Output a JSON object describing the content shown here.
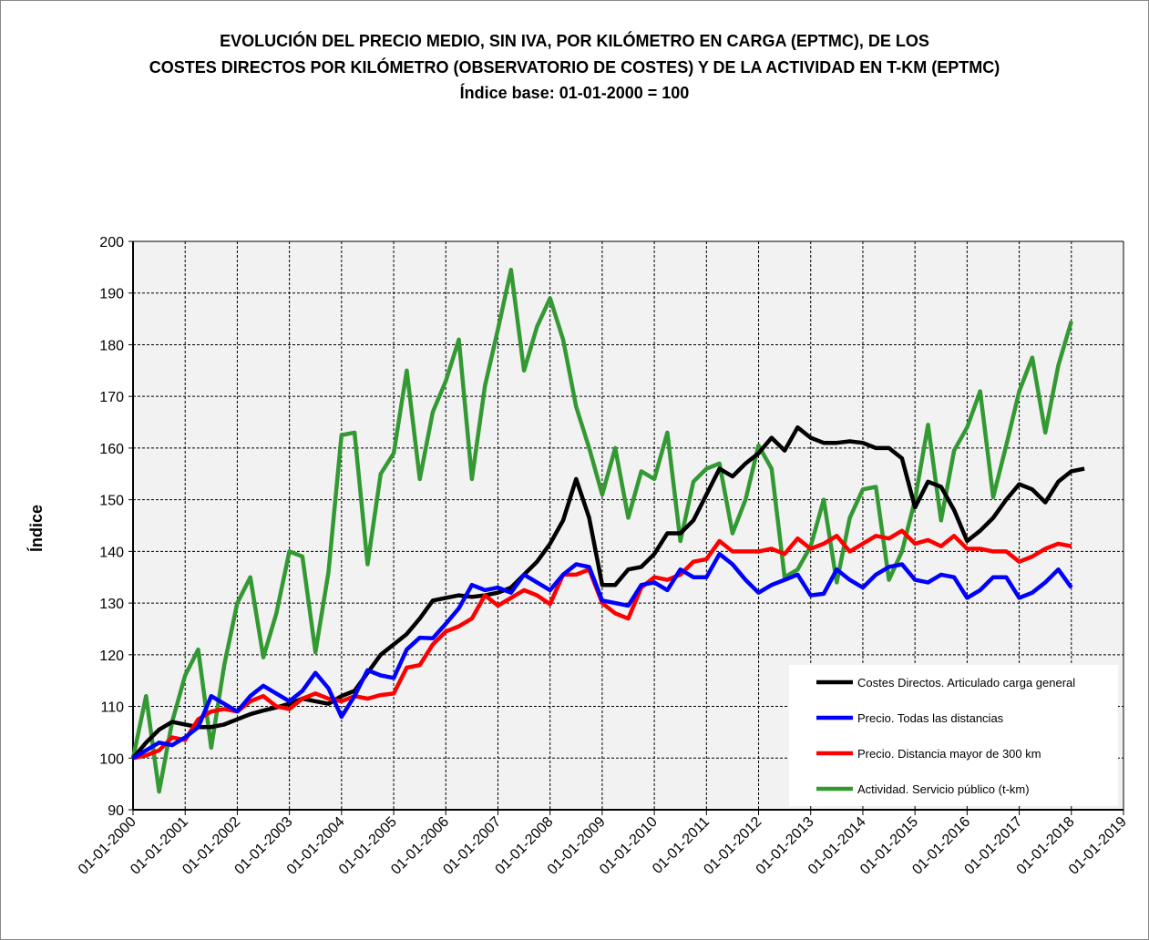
{
  "chart_data": {
    "type": "line",
    "title": [
      "EVOLUCIÓN DEL PRECIO MEDIO, SIN IVA, POR KILÓMETRO EN CARGA (EPTMC), DE LOS",
      "COSTES DIRECTOS POR KILÓMETRO (OBSERVATORIO DE COSTES) Y DE LA ACTIVIDAD EN T-KM (EPTMC)",
      "Índice base: 01-01-2000 = 100"
    ],
    "xlabel": "",
    "ylabel": "Índice",
    "x_start_year": 2000,
    "x_step_years": 0.25,
    "xlim": [
      2000,
      2019
    ],
    "ylim": [
      90,
      200
    ],
    "yticks": [
      "90",
      "100",
      "110",
      "120",
      "130",
      "140",
      "150",
      "160",
      "170",
      "180",
      "190",
      "200"
    ],
    "xticks": [
      "01-01-2000",
      "01-01-2001",
      "01-01-2002",
      "01-01-2003",
      "01-01-2004",
      "01-01-2005",
      "01-01-2006",
      "01-01-2007",
      "01-01-2008",
      "01-01-2009",
      "01-01-2010",
      "01-01-2011",
      "01-01-2012",
      "01-01-2013",
      "01-01-2014",
      "01-01-2015",
      "01-01-2016",
      "01-01-2017",
      "01-01-2018",
      "01-01-2019"
    ],
    "grid": true,
    "legend_position": "bottom-right",
    "series": [
      {
        "name": "Costes Directos. Articulado carga general",
        "color": "#000000",
        "values": [
          100,
          103,
          105.5,
          107,
          106.5,
          106,
          106,
          106.5,
          107.5,
          108.5,
          109.2,
          109.8,
          110.5,
          111.5,
          111,
          110.5,
          112,
          113,
          116.5,
          120,
          122,
          124,
          127,
          130.5,
          131,
          131.5,
          131.2,
          131.5,
          132,
          133,
          135.5,
          138,
          141.5,
          146,
          154,
          146.5,
          133.5,
          133.5,
          136.5,
          137,
          139.5,
          143.5,
          143.5,
          146,
          151,
          156,
          154.5,
          157,
          159,
          162,
          159.5,
          164,
          162,
          161,
          161,
          161.3,
          161,
          160,
          160,
          158,
          148.5,
          153.5,
          152.5,
          148,
          142,
          144,
          146.5,
          150,
          153,
          152,
          149.5,
          153.5,
          155.5,
          156
        ]
      },
      {
        "name": "Precio. Todas las distancias",
        "color": "#0000ff",
        "values": [
          100,
          101.5,
          103,
          102.5,
          104,
          106,
          112,
          110.5,
          109,
          112,
          114,
          112.5,
          111,
          113,
          116.5,
          113.5,
          108,
          112,
          117,
          116,
          115.5,
          121,
          123.3,
          123.2,
          126,
          129,
          133.5,
          132.5,
          133,
          132,
          135.5,
          134,
          132.5,
          135.5,
          137.5,
          137,
          130.5,
          130,
          129.5,
          133.5,
          134,
          132.5,
          136.5,
          135,
          135,
          139.5,
          137.5,
          134.5,
          132,
          133.5,
          134.5,
          135.5,
          131.5,
          131.8,
          136.5,
          134.5,
          133,
          135.5,
          137,
          137.5,
          134.5,
          134,
          135.5,
          135,
          131,
          132.5,
          135,
          135,
          131,
          132,
          134,
          136.5,
          133
        ]
      },
      {
        "name": "Precio. Distancia mayor de 300 km",
        "color": "#ff0000",
        "values": [
          100,
          100.5,
          101.5,
          104,
          103.5,
          107.5,
          109,
          109.5,
          109,
          111,
          112,
          110,
          109.5,
          111.5,
          112.5,
          111.5,
          111,
          112,
          111.5,
          112.2,
          112.5,
          117.5,
          118,
          122,
          124.5,
          125.5,
          127,
          131.5,
          129.5,
          131,
          132.5,
          131.5,
          129.8,
          135.5,
          135.5,
          136.5,
          130,
          128,
          127,
          133,
          135,
          134.5,
          135.5,
          138,
          138.5,
          142,
          140,
          140,
          140,
          140.5,
          139.5,
          142.5,
          140.5,
          141.5,
          143,
          140,
          141.5,
          143,
          142.5,
          144,
          141.5,
          142.2,
          141,
          143,
          140.5,
          140.5,
          140,
          140,
          138,
          139,
          140.5,
          141.5,
          141
        ]
      },
      {
        "name": "Actividad. Servicio público (t-km)",
        "color": "#339933",
        "values": [
          100,
          112,
          93.5,
          107,
          116,
          121,
          102,
          118,
          130,
          135,
          119.5,
          128,
          140,
          139,
          120.5,
          136,
          162.5,
          163,
          137.5,
          155,
          159,
          175,
          154,
          167,
          173,
          181,
          154,
          172,
          183,
          194.5,
          175,
          183.5,
          189,
          181,
          168,
          160,
          151,
          160,
          146.5,
          155.5,
          154,
          163,
          142,
          153.5,
          156,
          157,
          143.5,
          150,
          160.5,
          156,
          135,
          136.5,
          141,
          150,
          134,
          146.5,
          152,
          152.5,
          134.5,
          140,
          150,
          164.5,
          146,
          159.5,
          164,
          171,
          150.5,
          160.5,
          171,
          177.5,
          163,
          176,
          184.5
        ]
      }
    ]
  }
}
